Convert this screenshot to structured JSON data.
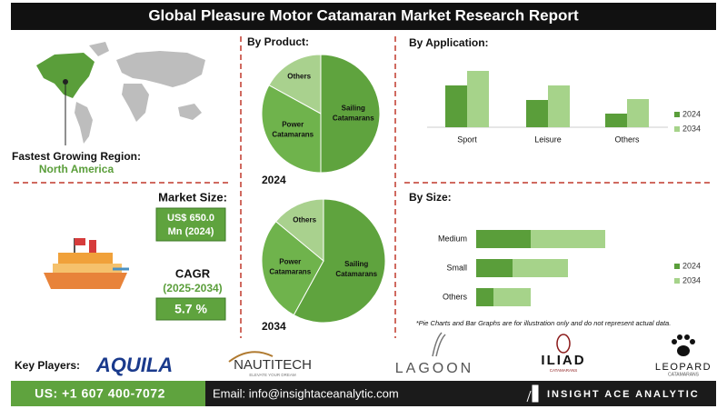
{
  "header": {
    "title": "Global Pleasure Motor Catamaran Market Research Report"
  },
  "region": {
    "label": "Fastest Growing Region:",
    "value": "North America"
  },
  "market_size": {
    "label": "Market Size:",
    "lines": [
      "US$ 650.0",
      "Mn (2024)"
    ]
  },
  "cagr": {
    "label": "CAGR",
    "period": "(2025-2034)",
    "value": "5.7 %"
  },
  "chart_data": [
    {
      "type": "pie",
      "title": "By Product:",
      "label": "2024",
      "categories": [
        "Sailing Catamarans",
        "Power Catamarans",
        "Others"
      ],
      "values": [
        50,
        33,
        17
      ],
      "colors": [
        "#5fa33e",
        "#6fb34c",
        "#a9d18e"
      ]
    },
    {
      "type": "pie",
      "label": "2034",
      "categories": [
        "Sailing Catamarans",
        "Power Catamarans",
        "Others"
      ],
      "values": [
        58,
        28,
        14
      ],
      "colors": [
        "#5fa33e",
        "#6fb34c",
        "#a9d18e"
      ]
    },
    {
      "type": "bar",
      "title": "By Application:",
      "categories": [
        "Sport",
        "Leisure",
        "Others"
      ],
      "series": [
        {
          "name": "2024",
          "color": "#5a9e3a",
          "values": [
            46,
            30,
            15
          ]
        },
        {
          "name": "2034",
          "color": "#a6d38a",
          "values": [
            62,
            46,
            31
          ]
        }
      ]
    },
    {
      "type": "bar",
      "orientation": "horizontal",
      "stacked": true,
      "title": "By Size:",
      "categories": [
        "Medium",
        "Small",
        "Others"
      ],
      "series": [
        {
          "name": "2024",
          "color": "#5a9e3a",
          "values": [
            60,
            40,
            19
          ]
        },
        {
          "name": "2034",
          "color": "#a6d38a",
          "values": [
            82,
            61,
            41
          ]
        }
      ]
    }
  ],
  "note": "*Pie Charts and Bar Graphs are for illustration only and do not represent actual data.",
  "key_players": {
    "label": "Key Players:",
    "players": [
      {
        "name": "AQUILA"
      },
      {
        "name": "NAUTITECH",
        "tagline": "ELEVATE YOUR DREAM"
      },
      {
        "name": "LAGOON"
      },
      {
        "name": "ILIAD",
        "tagline": "CATAMARANS"
      },
      {
        "name": "LEOPARD",
        "tagline": "CATAMARANS"
      }
    ]
  },
  "footer": {
    "phone": "US: +1 607 400-7072",
    "email": "Email: info@insightaceanalytic.com",
    "brand": "INSIGHT ACE ANALYTIC"
  }
}
